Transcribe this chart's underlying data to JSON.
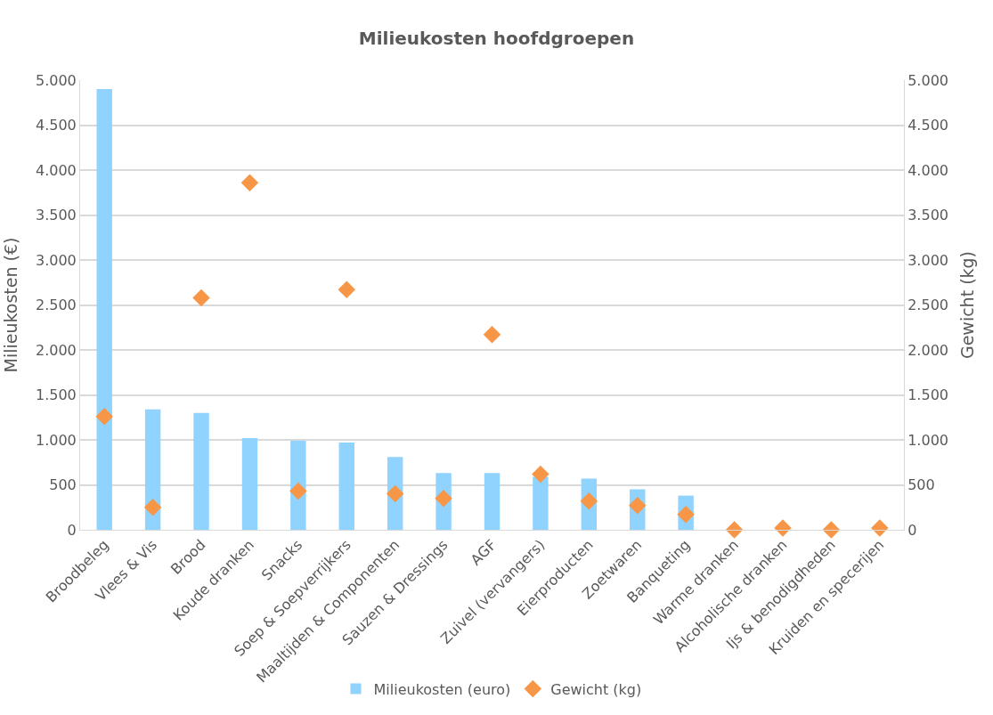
{
  "chart_data": {
    "type": "bar",
    "title": "Milieukosten hoofdgroepen",
    "ylabel": "Milieukosten (€)",
    "y2label": "Gewicht (kg)",
    "categories": [
      "Broodbeleg",
      "Vlees & Vis",
      "Brood",
      "Koude dranken",
      "Snacks",
      "Soep & Soepverrijkers",
      "Maaltijden & Componenten",
      "Sauzen & Dressings",
      "AGF",
      "Zuivel (vervangers)",
      "Eierproducten",
      "Zoetwaren",
      "Banqueting",
      "Warme dranken",
      "Alcoholische dranken",
      "Ijs & benodigdheden",
      "Kruiden en specerijen"
    ],
    "series": [
      {
        "name": "Milieukosten (euro)",
        "color": "#8fd3fe",
        "values": [
          4900,
          1340,
          1300,
          1020,
          990,
          970,
          810,
          630,
          630,
          590,
          570,
          450,
          380,
          null,
          null,
          null,
          null
        ]
      },
      {
        "name": "Gewicht (kg)",
        "type": "scatter",
        "axis": "y2",
        "marker": "diamond",
        "color": "#f79646",
        "values": [
          1260,
          250,
          2580,
          3860,
          430,
          2670,
          400,
          350,
          2170,
          620,
          320,
          270,
          170,
          0,
          20,
          0,
          20
        ]
      }
    ],
    "ylim": [
      0,
      5000
    ],
    "yticks": [
      {
        "value": 0,
        "label": "0"
      },
      {
        "value": 500,
        "label": "500"
      },
      {
        "value": 1000,
        "label": "1.000"
      },
      {
        "value": 1500,
        "label": "1.500"
      },
      {
        "value": 2000,
        "label": "2.000"
      },
      {
        "value": 2500,
        "label": "2.500"
      },
      {
        "value": 3000,
        "label": "3.000"
      },
      {
        "value": 3500,
        "label": "3.500"
      },
      {
        "value": 4000,
        "label": "4.000"
      },
      {
        "value": 4500,
        "label": "4.500"
      },
      {
        "value": 5000,
        "label": "5.000"
      }
    ],
    "y2lim": [
      0,
      5000
    ],
    "y2ticks": [
      {
        "value": 0,
        "label": "0"
      },
      {
        "value": 500,
        "label": "500"
      },
      {
        "value": 1000,
        "label": "1.000"
      },
      {
        "value": 1500,
        "label": "1.500"
      },
      {
        "value": 2000,
        "label": "2.000"
      },
      {
        "value": 2500,
        "label": "2.500"
      },
      {
        "value": 3000,
        "label": "3.000"
      },
      {
        "value": 3500,
        "label": "3.500"
      },
      {
        "value": 4000,
        "label": "4.000"
      },
      {
        "value": 4500,
        "label": "4.500"
      },
      {
        "value": 5000,
        "label": "5.000"
      }
    ],
    "grid": "y",
    "legend": "bottom"
  }
}
